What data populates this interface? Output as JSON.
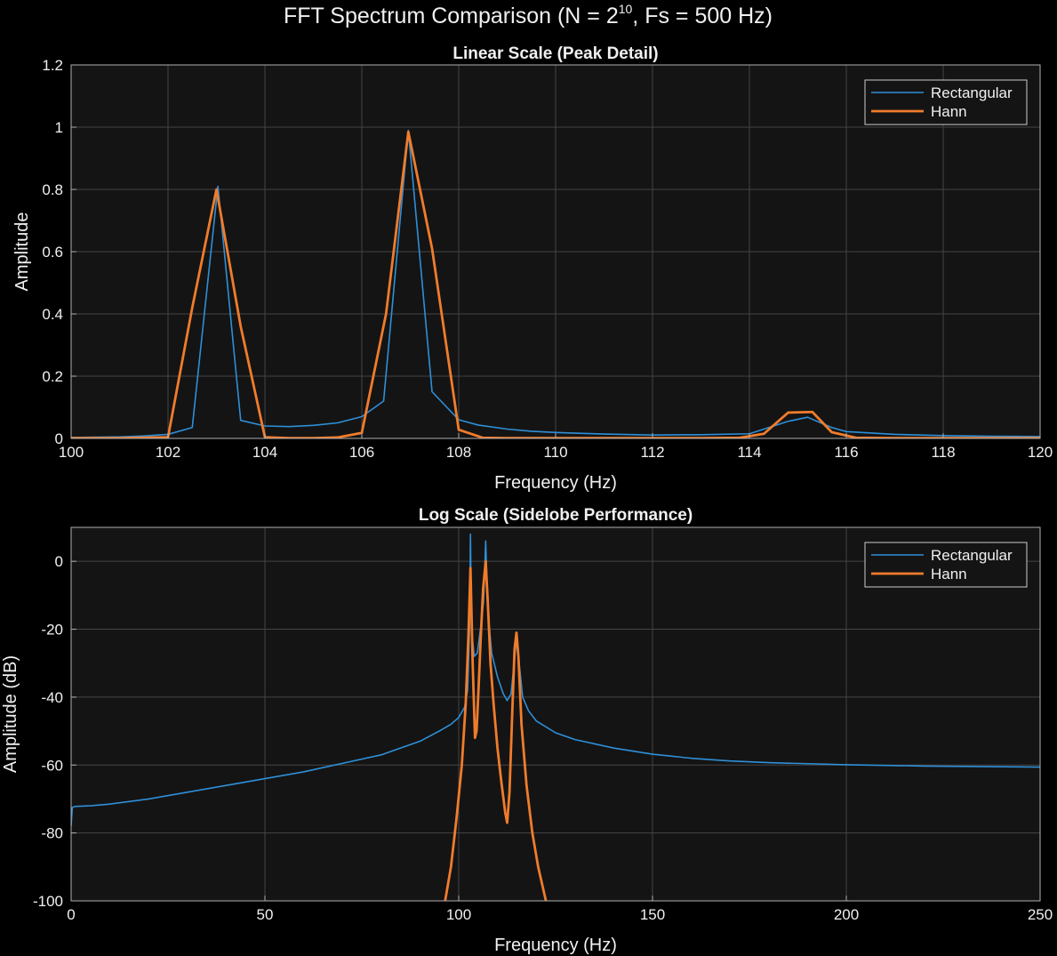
{
  "figure": {
    "title": "FFT  Spectrum  Comparison  (N  =  2",
    "title_exp": "10",
    "title_tail": ",  Fs  =  500  Hz)",
    "background": "#000000",
    "axes_background": "#141414",
    "grid_color": "#444444",
    "text_color": "#f0f0f0"
  },
  "chart_data": [
    {
      "type": "line",
      "title": "Linear Scale (Peak Detail)",
      "xlabel": "Frequency (Hz)",
      "ylabel": "Amplitude",
      "xlim": [
        100,
        120
      ],
      "ylim": [
        0,
        1.2
      ],
      "xticks": [
        100,
        102,
        104,
        106,
        108,
        110,
        112,
        114,
        116,
        118,
        120
      ],
      "yticks": [
        0,
        0.2,
        0.4,
        0.6,
        0.8,
        1,
        1.2
      ],
      "grid": true,
      "legend_position": "top-right",
      "series": [
        {
          "name": "Rectangular",
          "color": "#2f8fd8",
          "x": [
            100,
            100.5,
            101,
            101.5,
            102,
            102.5,
            103.03,
            103.5,
            104,
            104.5,
            105,
            105.5,
            106,
            106.45,
            106.96,
            107.45,
            108,
            108.4,
            109,
            109.5,
            110,
            111,
            112,
            113,
            114,
            114.8,
            115.2,
            115.7,
            116,
            117,
            118,
            119,
            120
          ],
          "values": [
            0.003,
            0.004,
            0.005,
            0.008,
            0.013,
            0.035,
            0.81,
            0.058,
            0.04,
            0.038,
            0.042,
            0.05,
            0.07,
            0.12,
            0.99,
            0.15,
            0.06,
            0.043,
            0.03,
            0.023,
            0.019,
            0.014,
            0.011,
            0.012,
            0.015,
            0.055,
            0.068,
            0.035,
            0.022,
            0.013,
            0.009,
            0.007,
            0.006
          ]
        },
        {
          "name": "Hann",
          "color": "#f07c2c",
          "x": [
            100,
            101,
            102,
            102.5,
            103,
            103.5,
            104,
            104.5,
            105,
            105.5,
            106,
            106.5,
            106.96,
            107.45,
            108,
            108.5,
            109,
            110,
            112,
            113,
            113.8,
            114.3,
            114.8,
            115.3,
            115.7,
            116.2,
            117,
            118,
            120
          ],
          "values": [
            0.001,
            0.001,
            0.004,
            0.42,
            0.8,
            0.36,
            0.004,
            0.001,
            0.001,
            0.003,
            0.018,
            0.4,
            0.985,
            0.61,
            0.028,
            0.002,
            0.001,
            0.001,
            0.001,
            0.001,
            0.002,
            0.015,
            0.083,
            0.085,
            0.02,
            0.002,
            0.001,
            0.001,
            0.001
          ]
        }
      ]
    },
    {
      "type": "line",
      "title": "Log Scale (Sidelobe Performance)",
      "xlabel": "Frequency (Hz)",
      "ylabel": "Amplitude (dB)",
      "xlim": [
        0,
        250
      ],
      "ylim": [
        -100,
        10
      ],
      "xticks": [
        0,
        50,
        100,
        150,
        200,
        250
      ],
      "yticks": [
        -100,
        -80,
        -60,
        -40,
        -20,
        0
      ],
      "grid": true,
      "legend_position": "top-right",
      "series": [
        {
          "name": "Rectangular",
          "color": "#2f8fd8",
          "x": [
            0,
            0.3,
            1,
            5,
            10,
            20,
            30,
            40,
            50,
            60,
            70,
            80,
            85,
            90,
            95,
            98,
            100,
            101.5,
            102.3,
            102.8,
            103.03,
            103.3,
            104,
            104.8,
            105.6,
            106.4,
            106.96,
            107.5,
            108.5,
            110,
            111.5,
            112.5,
            113.5,
            114.3,
            115,
            115.6,
            116.5,
            118,
            120,
            125,
            130,
            140,
            150,
            160,
            170,
            180,
            190,
            200,
            210,
            220,
            230,
            240,
            250
          ],
          "values": [
            -78,
            -72.5,
            -72.2,
            -72,
            -71.5,
            -70,
            -68,
            -66,
            -64,
            -62,
            -59.5,
            -57,
            -55,
            -53,
            -50,
            -48,
            -46,
            -43,
            -38,
            -20,
            8,
            -20,
            -28,
            -27,
            -20,
            -12,
            6,
            -14,
            -27,
            -34,
            -39,
            -41,
            -39,
            -30,
            -22,
            -30,
            -40,
            -44,
            -47,
            -50.5,
            -52.5,
            -55,
            -56.8,
            -58,
            -58.8,
            -59.3,
            -59.6,
            -59.9,
            -60.1,
            -60.3,
            -60.4,
            -60.5,
            -60.6
          ]
        },
        {
          "name": "Hann",
          "color": "#f07c2c",
          "x": [
            96.5,
            98,
            99.5,
            100.8,
            101.8,
            102.5,
            103.03,
            103.6,
            104.2,
            104.6,
            105.1,
            105.7,
            106.3,
            106.96,
            107.5,
            108.2,
            109,
            110,
            111,
            112,
            112.5,
            113.1,
            113.8,
            114.4,
            114.9,
            115.4,
            116.2,
            117.5,
            119,
            120.5,
            122.5
          ],
          "values": [
            -100,
            -90,
            -75,
            -60,
            -42,
            -22,
            -2,
            -30,
            -52,
            -50,
            -38,
            -22,
            -8,
            0,
            -12,
            -30,
            -42,
            -55,
            -65,
            -74,
            -77,
            -68,
            -45,
            -26,
            -21,
            -28,
            -48,
            -66,
            -80,
            -90,
            -100
          ]
        }
      ]
    }
  ],
  "legend": {
    "rect_label": "Rectangular",
    "hann_label": "Hann"
  }
}
